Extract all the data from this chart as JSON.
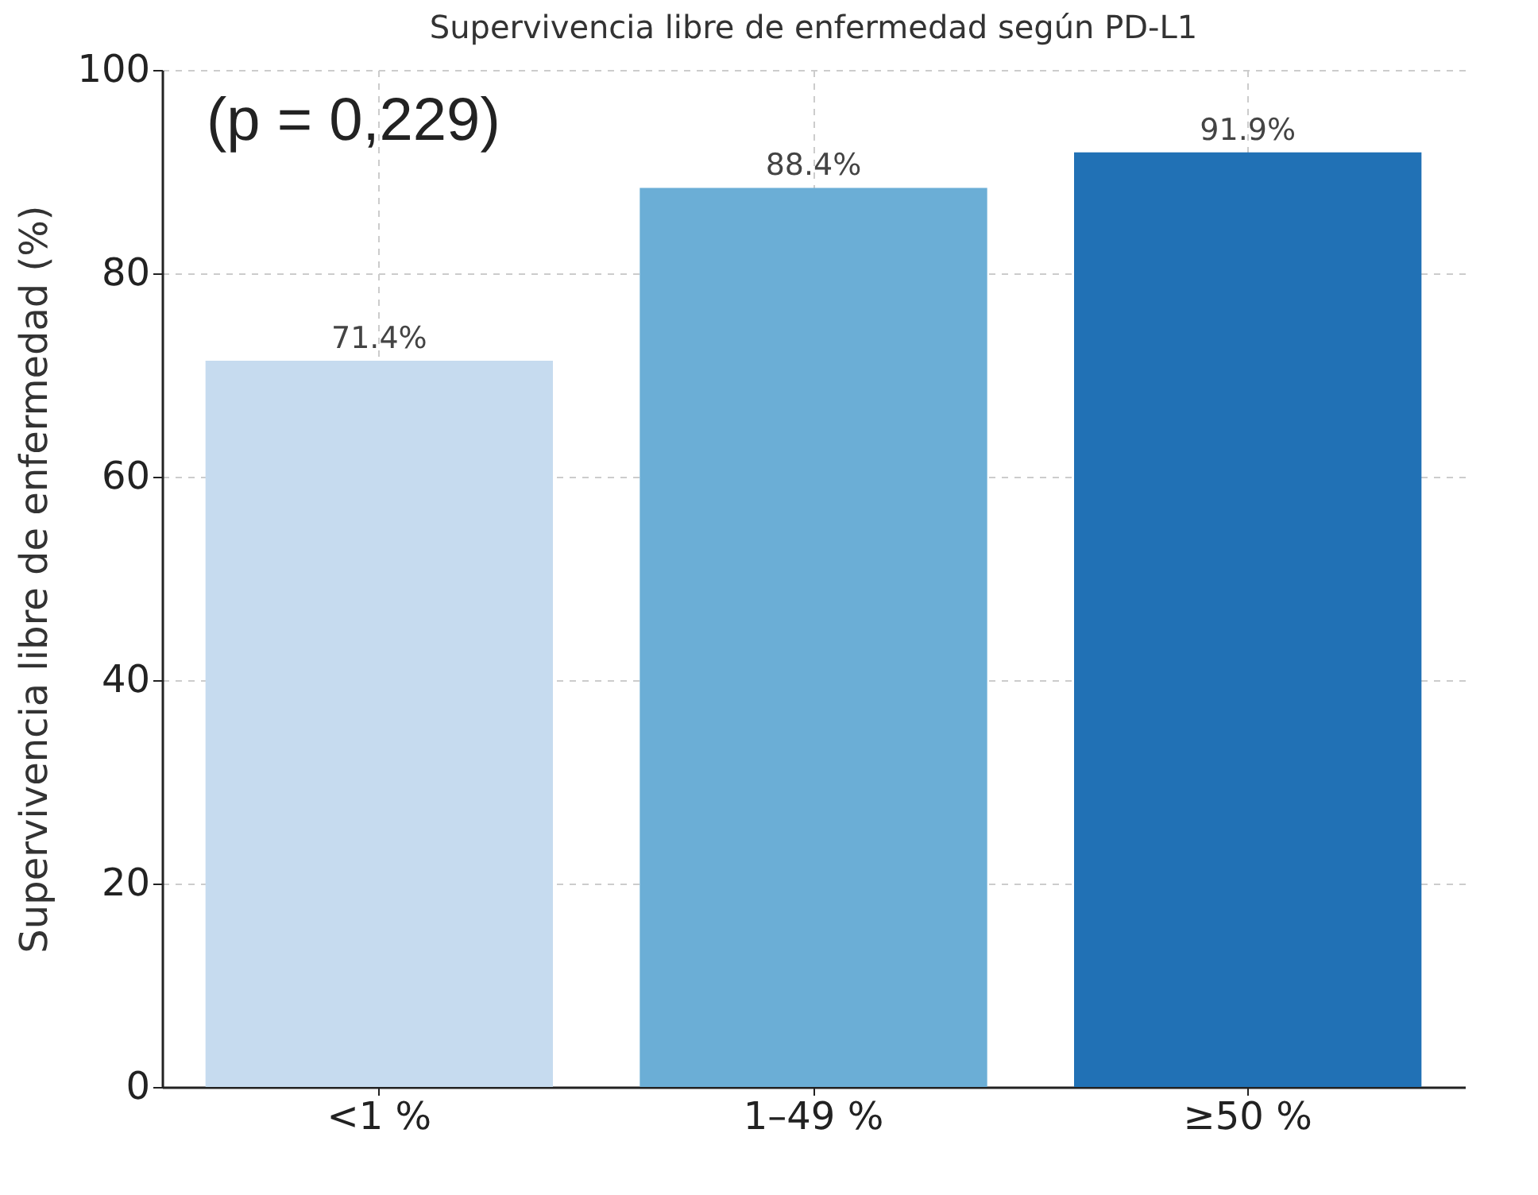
{
  "chart_data": {
    "type": "bar",
    "title": "Supervivencia libre de enfermedad según PD-L1",
    "ylabel": "Supervivencia libre de enfermedad (%)",
    "categories": [
      "<1 %",
      "1–49 %",
      "≥50 %"
    ],
    "values": [
      71.4,
      88.4,
      91.9
    ],
    "colors": [
      "#c6dbef",
      "#6baed6",
      "#2171b5"
    ],
    "value_labels": [
      "71.4%",
      "88.4%",
      "91.9%"
    ],
    "annotations": [
      "(p = 0,229)"
    ],
    "ylim": [
      0,
      100
    ],
    "yticks": [
      0,
      20,
      40,
      60,
      80,
      100
    ],
    "grid": true
  }
}
